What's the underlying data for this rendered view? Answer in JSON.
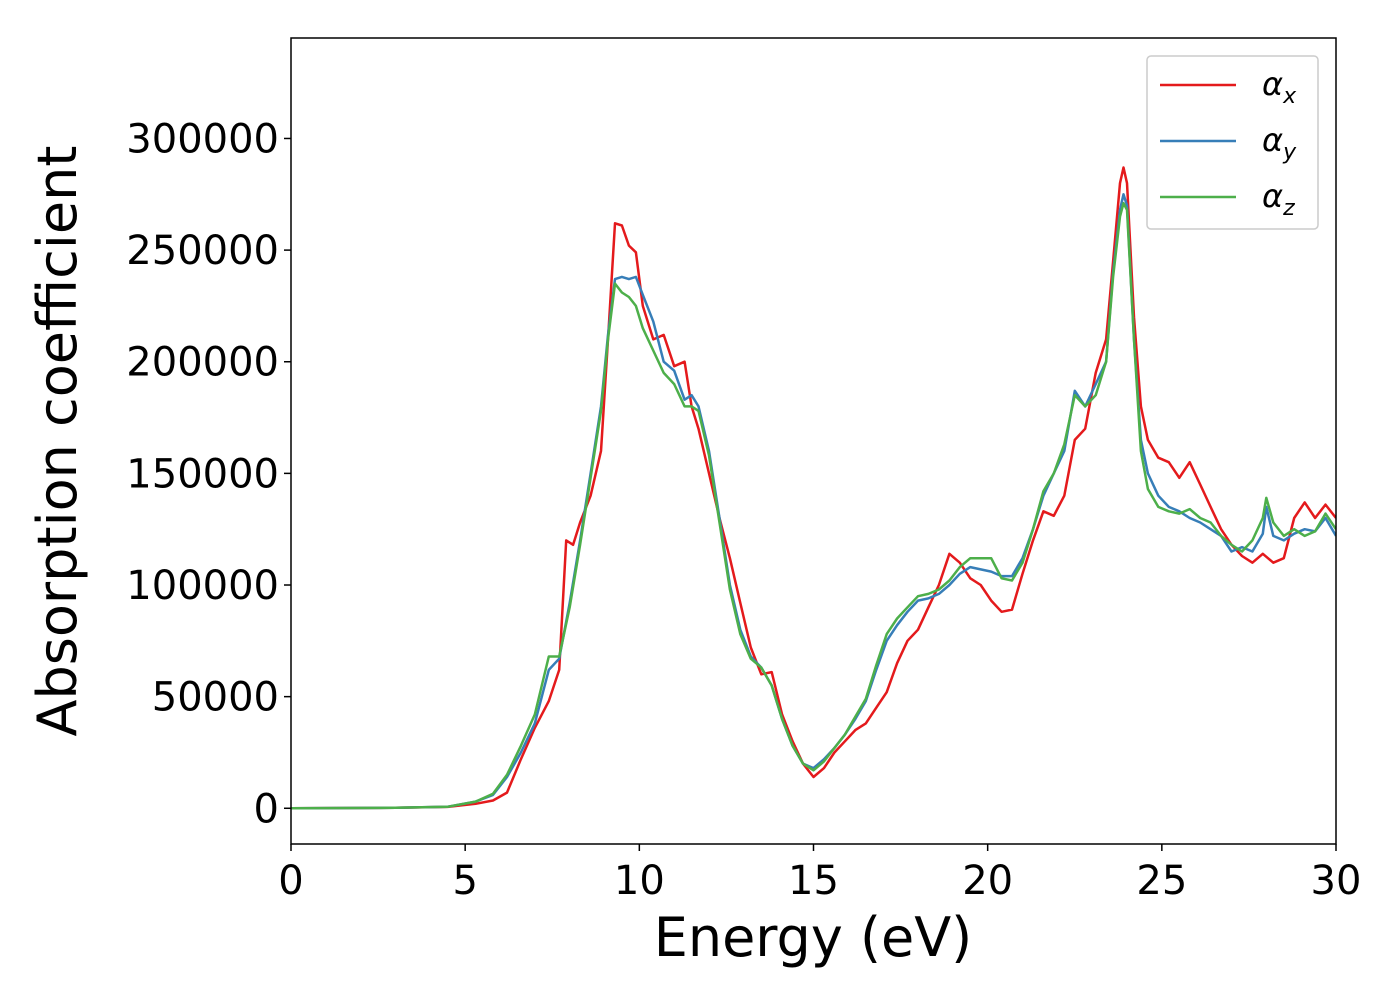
{
  "chart_data": {
    "type": "line",
    "xlabel": "Energy (eV)",
    "ylabel": "Absorption coefficient",
    "xlim": [
      0,
      30
    ],
    "ylim": [
      -16000,
      345000
    ],
    "xticks": [
      0,
      5,
      10,
      15,
      20,
      25,
      30
    ],
    "yticks": [
      0,
      50000,
      100000,
      150000,
      200000,
      250000,
      300000
    ],
    "grid": false,
    "legend_position": "upper-right",
    "series": [
      {
        "name": "α_x",
        "base": "α",
        "sub": "x",
        "color": "#e41a1c",
        "x": [
          0,
          3,
          4.5,
          5.3,
          5.8,
          6.2,
          6.6,
          7.0,
          7.4,
          7.7,
          7.9,
          8.1,
          8.3,
          8.6,
          8.9,
          9.1,
          9.3,
          9.5,
          9.7,
          9.9,
          10.1,
          10.4,
          10.7,
          11.0,
          11.3,
          11.5,
          11.7,
          12.0,
          12.3,
          12.6,
          12.9,
          13.2,
          13.5,
          13.8,
          14.1,
          14.4,
          14.7,
          15.0,
          15.3,
          15.6,
          15.9,
          16.2,
          16.5,
          16.8,
          17.1,
          17.4,
          17.7,
          18.0,
          18.3,
          18.6,
          18.9,
          19.2,
          19.5,
          19.8,
          20.1,
          20.4,
          20.7,
          21.0,
          21.3,
          21.6,
          21.9,
          22.2,
          22.5,
          22.8,
          23.1,
          23.4,
          23.6,
          23.8,
          23.9,
          24.0,
          24.2,
          24.4,
          24.6,
          24.9,
          25.2,
          25.5,
          25.8,
          26.1,
          26.4,
          26.7,
          27.0,
          27.3,
          27.6,
          27.9,
          28.2,
          28.5,
          28.8,
          29.1,
          29.4,
          29.7,
          30.0
        ],
        "y": [
          0,
          200,
          600,
          2000,
          3500,
          7000,
          22000,
          36000,
          48000,
          62000,
          120000,
          118000,
          128000,
          140000,
          160000,
          210000,
          262000,
          261000,
          252000,
          249000,
          225000,
          210000,
          212000,
          198000,
          200000,
          180000,
          170000,
          150000,
          130000,
          112000,
          92000,
          72000,
          60000,
          61000,
          42000,
          30000,
          20000,
          14000,
          18000,
          25000,
          30000,
          35000,
          38000,
          45000,
          52000,
          65000,
          75000,
          80000,
          90000,
          100000,
          114000,
          110000,
          103000,
          100000,
          93000,
          88000,
          89000,
          105000,
          120000,
          133000,
          131000,
          140000,
          165000,
          170000,
          195000,
          210000,
          245000,
          280000,
          287000,
          280000,
          220000,
          180000,
          165000,
          157000,
          155000,
          148000,
          155000,
          145000,
          135000,
          125000,
          118000,
          113000,
          110000,
          114000,
          110000,
          112000,
          130000,
          137000,
          130000,
          136000,
          130000
        ]
      },
      {
        "name": "α_y",
        "base": "α",
        "sub": "y",
        "color": "#377eb8",
        "x": [
          0,
          3,
          4.5,
          5.3,
          5.8,
          6.2,
          6.6,
          7.0,
          7.4,
          7.7,
          8.0,
          8.3,
          8.6,
          8.9,
          9.1,
          9.3,
          9.5,
          9.7,
          9.9,
          10.1,
          10.4,
          10.7,
          11.0,
          11.3,
          11.5,
          11.7,
          12.0,
          12.3,
          12.6,
          12.9,
          13.2,
          13.5,
          13.8,
          14.1,
          14.4,
          14.7,
          15.0,
          15.3,
          15.6,
          15.9,
          16.2,
          16.5,
          16.8,
          17.1,
          17.4,
          17.7,
          18.0,
          18.3,
          18.6,
          18.9,
          19.2,
          19.5,
          19.8,
          20.1,
          20.4,
          20.7,
          21.0,
          21.3,
          21.6,
          21.9,
          22.2,
          22.5,
          22.8,
          23.1,
          23.4,
          23.6,
          23.8,
          23.9,
          24.0,
          24.2,
          24.4,
          24.6,
          24.9,
          25.2,
          25.5,
          25.8,
          26.1,
          26.4,
          26.7,
          27.0,
          27.3,
          27.6,
          27.9,
          28.0,
          28.2,
          28.5,
          28.8,
          29.1,
          29.4,
          29.7,
          30.0
        ],
        "y": [
          0,
          200,
          700,
          3000,
          6000,
          14000,
          25000,
          38000,
          62000,
          67000,
          92000,
          120000,
          150000,
          180000,
          212000,
          237000,
          238000,
          237000,
          238000,
          230000,
          218000,
          200000,
          196000,
          183000,
          185000,
          180000,
          160000,
          130000,
          100000,
          80000,
          68000,
          63000,
          55000,
          40000,
          28000,
          20000,
          18000,
          22000,
          27000,
          33000,
          40000,
          48000,
          62000,
          75000,
          82000,
          88000,
          93000,
          94000,
          96000,
          100000,
          105000,
          108000,
          107000,
          106000,
          104000,
          104000,
          112000,
          125000,
          140000,
          150000,
          160000,
          187000,
          180000,
          190000,
          200000,
          240000,
          268000,
          275000,
          270000,
          210000,
          165000,
          150000,
          140000,
          135000,
          133000,
          130000,
          128000,
          125000,
          122000,
          115000,
          117000,
          115000,
          123000,
          135000,
          122000,
          120000,
          123000,
          125000,
          124000,
          130000,
          122000
        ]
      },
      {
        "name": "α_z",
        "base": "α",
        "sub": "z",
        "color": "#4daf4a",
        "x": [
          0,
          3,
          4.5,
          5.3,
          5.8,
          6.2,
          6.6,
          7.0,
          7.4,
          7.7,
          8.0,
          8.3,
          8.6,
          8.9,
          9.1,
          9.3,
          9.5,
          9.7,
          9.9,
          10.1,
          10.4,
          10.7,
          11.0,
          11.3,
          11.5,
          11.7,
          12.0,
          12.3,
          12.6,
          12.9,
          13.2,
          13.5,
          13.8,
          14.1,
          14.4,
          14.7,
          15.0,
          15.3,
          15.6,
          15.9,
          16.2,
          16.5,
          16.8,
          17.1,
          17.4,
          17.7,
          18.0,
          18.3,
          18.6,
          18.9,
          19.2,
          19.5,
          19.8,
          20.1,
          20.4,
          20.7,
          21.0,
          21.3,
          21.6,
          21.9,
          22.2,
          22.5,
          22.8,
          23.1,
          23.4,
          23.6,
          23.8,
          23.9,
          24.0,
          24.2,
          24.4,
          24.6,
          24.9,
          25.2,
          25.5,
          25.8,
          26.1,
          26.4,
          26.7,
          27.0,
          27.3,
          27.6,
          27.9,
          28.0,
          28.2,
          28.5,
          28.8,
          29.1,
          29.4,
          29.7,
          30.0
        ],
        "y": [
          0,
          200,
          700,
          3000,
          6500,
          15000,
          28000,
          42000,
          68000,
          68000,
          90000,
          118000,
          148000,
          178000,
          210000,
          235000,
          231000,
          229000,
          225000,
          215000,
          205000,
          195000,
          190000,
          180000,
          180000,
          178000,
          158000,
          128000,
          98000,
          78000,
          67000,
          63000,
          55000,
          40000,
          28000,
          20000,
          17000,
          21000,
          27000,
          33000,
          41000,
          49000,
          64000,
          78000,
          85000,
          90000,
          95000,
          96000,
          98000,
          102000,
          108000,
          112000,
          112000,
          112000,
          103000,
          102000,
          110000,
          125000,
          142000,
          150000,
          163000,
          185000,
          180000,
          185000,
          200000,
          238000,
          265000,
          271000,
          268000,
          210000,
          160000,
          143000,
          135000,
          133000,
          132000,
          134000,
          130000,
          128000,
          122000,
          118000,
          115000,
          120000,
          130000,
          139000,
          128000,
          122000,
          125000,
          122000,
          124000,
          132000,
          125000
        ]
      }
    ]
  }
}
